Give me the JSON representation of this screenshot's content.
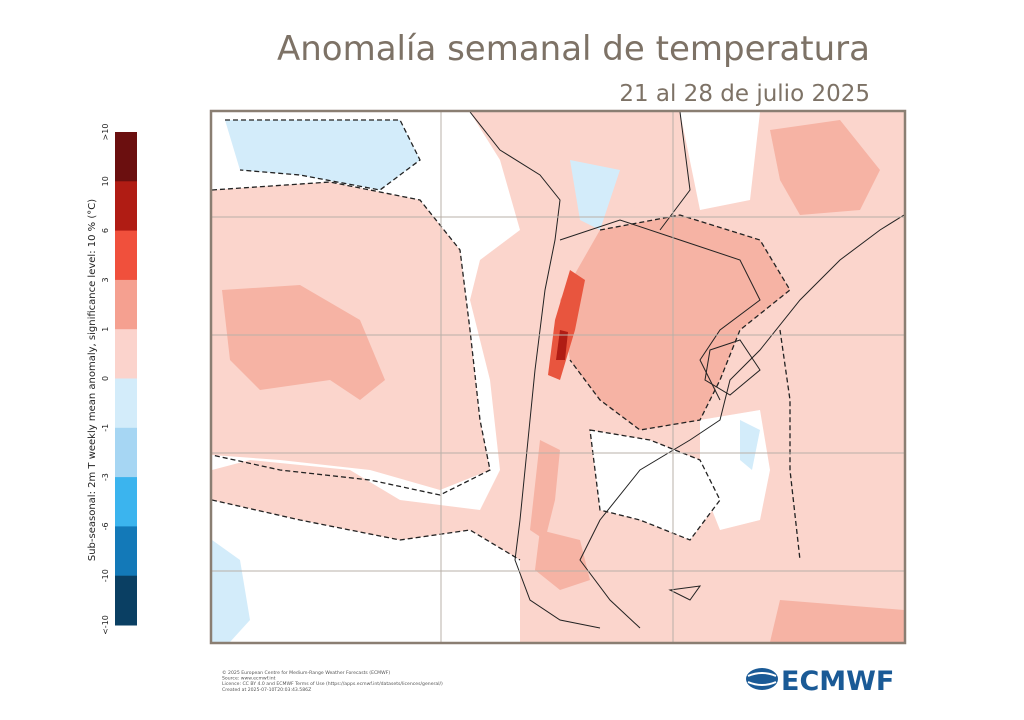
{
  "header": {
    "title": "Anomalía semanal de temperatura",
    "subtitle": "21 al 28 de julio 2025"
  },
  "colorbar": {
    "label": "Sub-seasonal: 2m T weekly mean anomaly, significance level: 10 % (°C)",
    "ticks": [
      ">10",
      "10",
      "6",
      "3",
      "1",
      "0",
      "-1",
      "-3",
      "-6",
      "-10",
      "<-10"
    ],
    "colors": [
      "#6b0f0f",
      "#b01c14",
      "#f0503c",
      "#f5a090",
      "#fbd3cc",
      "#d3ecfa",
      "#a6d6f3",
      "#3bb4ee",
      "#1379b8",
      "#0a3f63"
    ]
  },
  "footer": {
    "lines": [
      "© 2025 European Centre for Medium-Range Weather Forecasts (ECMWF)",
      "Source: www.ecmwf.int",
      "Licence: CC BY 4.0 and ECMWF Terms of Use (https://apps.ecmwf.int/datasets/licences/general/)",
      "Created at 2025-07-10T20:03:43.586Z"
    ],
    "logo": "ECMWF"
  }
}
